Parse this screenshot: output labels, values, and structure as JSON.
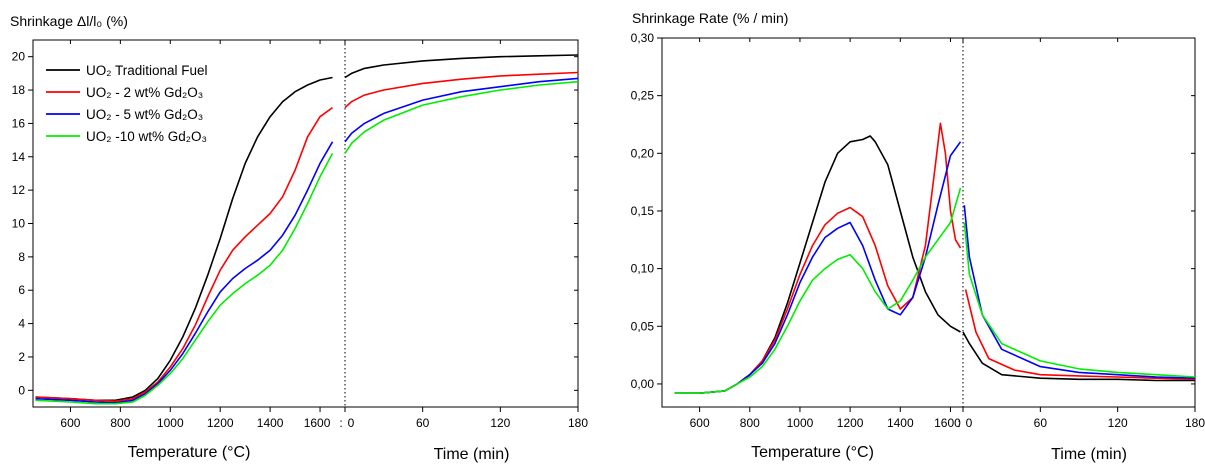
{
  "colors": {
    "traditional": "#000000",
    "gd2": "#ff0000",
    "gd5": "#0000ff",
    "gd10": "#00ee00"
  },
  "chart_data": [
    {
      "type": "line",
      "title": "Shrinkage Δl/l₀ (%)",
      "ylabel": "Shrinkage Δl/l₀ (%)",
      "xlabel_left": "Temperature (°C)",
      "xlabel_right": "Time (min)",
      "ylim": [
        -1,
        21
      ],
      "yticks": [
        0,
        2,
        4,
        6,
        8,
        10,
        12,
        14,
        16,
        18,
        20
      ],
      "temp_range": [
        450,
        1700
      ],
      "temp_ticks": [
        600,
        800,
        1000,
        1200,
        1400,
        1600
      ],
      "time_range": [
        0,
        180
      ],
      "time_ticks": [
        0,
        60,
        120,
        180
      ],
      "legend_position": "top-left",
      "legend": [
        {
          "key": "traditional",
          "label": "UO₂ Traditional Fuel"
        },
        {
          "key": "gd2",
          "label": "UO₂ - 2 wt% Gd₂O₃"
        },
        {
          "key": "gd5",
          "label": "UO₂ - 5 wt% Gd₂O₃"
        },
        {
          "key": "gd10",
          "label": "UO₂ -10 wt% Gd₂O₃"
        }
      ],
      "series": [
        {
          "key": "traditional",
          "temp": [
            [
              460,
              -0.4
            ],
            [
              600,
              -0.5
            ],
            [
              700,
              -0.6
            ],
            [
              780,
              -0.6
            ],
            [
              850,
              -0.4
            ],
            [
              900,
              0.0
            ],
            [
              950,
              0.7
            ],
            [
              1000,
              1.8
            ],
            [
              1050,
              3.2
            ],
            [
              1100,
              4.9
            ],
            [
              1150,
              6.9
            ],
            [
              1200,
              9.1
            ],
            [
              1250,
              11.5
            ],
            [
              1300,
              13.6
            ],
            [
              1350,
              15.2
            ],
            [
              1400,
              16.4
            ],
            [
              1450,
              17.3
            ],
            [
              1500,
              17.9
            ],
            [
              1550,
              18.3
            ],
            [
              1600,
              18.6
            ],
            [
              1650,
              18.75
            ]
          ],
          "time": [
            [
              0,
              18.75
            ],
            [
              5,
              19.0
            ],
            [
              15,
              19.3
            ],
            [
              30,
              19.5
            ],
            [
              60,
              19.75
            ],
            [
              90,
              19.9
            ],
            [
              120,
              20.0
            ],
            [
              150,
              20.05
            ],
            [
              180,
              20.1
            ]
          ]
        },
        {
          "key": "gd2",
          "temp": [
            [
              460,
              -0.4
            ],
            [
              600,
              -0.5
            ],
            [
              700,
              -0.6
            ],
            [
              780,
              -0.65
            ],
            [
              850,
              -0.5
            ],
            [
              900,
              -0.1
            ],
            [
              950,
              0.5
            ],
            [
              1000,
              1.4
            ],
            [
              1050,
              2.5
            ],
            [
              1100,
              3.9
            ],
            [
              1150,
              5.6
            ],
            [
              1200,
              7.2
            ],
            [
              1250,
              8.4
            ],
            [
              1300,
              9.2
            ],
            [
              1350,
              9.9
            ],
            [
              1400,
              10.6
            ],
            [
              1450,
              11.6
            ],
            [
              1500,
              13.2
            ],
            [
              1550,
              15.2
            ],
            [
              1600,
              16.4
            ],
            [
              1650,
              16.95
            ]
          ],
          "time": [
            [
              0,
              16.95
            ],
            [
              5,
              17.3
            ],
            [
              15,
              17.7
            ],
            [
              30,
              18.0
            ],
            [
              60,
              18.4
            ],
            [
              90,
              18.65
            ],
            [
              120,
              18.85
            ],
            [
              150,
              18.95
            ],
            [
              180,
              19.05
            ]
          ]
        },
        {
          "key": "gd5",
          "temp": [
            [
              460,
              -0.5
            ],
            [
              600,
              -0.6
            ],
            [
              700,
              -0.7
            ],
            [
              780,
              -0.75
            ],
            [
              850,
              -0.6
            ],
            [
              900,
              -0.2
            ],
            [
              950,
              0.4
            ],
            [
              1000,
              1.2
            ],
            [
              1050,
              2.2
            ],
            [
              1100,
              3.4
            ],
            [
              1150,
              4.7
            ],
            [
              1200,
              5.9
            ],
            [
              1250,
              6.7
            ],
            [
              1300,
              7.3
            ],
            [
              1350,
              7.8
            ],
            [
              1400,
              8.4
            ],
            [
              1450,
              9.3
            ],
            [
              1500,
              10.5
            ],
            [
              1550,
              12.0
            ],
            [
              1600,
              13.6
            ],
            [
              1650,
              14.9
            ]
          ],
          "time": [
            [
              0,
              14.9
            ],
            [
              5,
              15.4
            ],
            [
              15,
              16.0
            ],
            [
              30,
              16.6
            ],
            [
              60,
              17.4
            ],
            [
              90,
              17.9
            ],
            [
              120,
              18.2
            ],
            [
              150,
              18.5
            ],
            [
              180,
              18.7
            ]
          ]
        },
        {
          "key": "gd10",
          "temp": [
            [
              460,
              -0.6
            ],
            [
              600,
              -0.7
            ],
            [
              700,
              -0.8
            ],
            [
              780,
              -0.8
            ],
            [
              850,
              -0.7
            ],
            [
              900,
              -0.3
            ],
            [
              950,
              0.3
            ],
            [
              1000,
              1.0
            ],
            [
              1050,
              1.9
            ],
            [
              1100,
              3.0
            ],
            [
              1150,
              4.1
            ],
            [
              1200,
              5.1
            ],
            [
              1250,
              5.8
            ],
            [
              1300,
              6.4
            ],
            [
              1350,
              6.9
            ],
            [
              1400,
              7.5
            ],
            [
              1450,
              8.4
            ],
            [
              1500,
              9.7
            ],
            [
              1550,
              11.2
            ],
            [
              1600,
              12.8
            ],
            [
              1650,
              14.2
            ]
          ],
          "time": [
            [
              0,
              14.2
            ],
            [
              5,
              14.8
            ],
            [
              15,
              15.5
            ],
            [
              30,
              16.2
            ],
            [
              60,
              17.1
            ],
            [
              90,
              17.6
            ],
            [
              120,
              18.0
            ],
            [
              150,
              18.3
            ],
            [
              180,
              18.5
            ]
          ]
        }
      ]
    },
    {
      "type": "line",
      "title": "Shrinkage Rate (% / min)",
      "ylabel": "Shrinkage Rate (% / min)",
      "xlabel_left": "Temperature (°C)",
      "xlabel_right": "Time (min)",
      "ylim": [
        -0.02,
        0.3
      ],
      "yticks": [
        "0,00",
        "0,05",
        "0,10",
        "0,15",
        "0,20",
        "0,25",
        "0,30"
      ],
      "ytick_values": [
        0,
        0.05,
        0.1,
        0.15,
        0.2,
        0.25,
        0.3
      ],
      "temp_range": [
        450,
        1650
      ],
      "temp_ticks": [
        600,
        800,
        1000,
        1200,
        1400,
        1600
      ],
      "time_range": [
        0,
        180
      ],
      "time_ticks": [
        0,
        60,
        120,
        180
      ],
      "series": [
        {
          "key": "traditional",
          "temp": [
            [
              500,
              -0.008
            ],
            [
              600,
              -0.008
            ],
            [
              700,
              -0.006
            ],
            [
              750,
              0.0
            ],
            [
              800,
              0.008
            ],
            [
              850,
              0.02
            ],
            [
              900,
              0.04
            ],
            [
              950,
              0.07
            ],
            [
              1000,
              0.105
            ],
            [
              1050,
              0.14
            ],
            [
              1100,
              0.175
            ],
            [
              1150,
              0.2
            ],
            [
              1200,
              0.21
            ],
            [
              1250,
              0.212
            ],
            [
              1280,
              0.215
            ],
            [
              1300,
              0.21
            ],
            [
              1350,
              0.19
            ],
            [
              1400,
              0.15
            ],
            [
              1450,
              0.11
            ],
            [
              1500,
              0.08
            ],
            [
              1550,
              0.06
            ],
            [
              1600,
              0.05
            ],
            [
              1640,
              0.045
            ]
          ],
          "time": [
            [
              0,
              0.045
            ],
            [
              5,
              0.035
            ],
            [
              15,
              0.018
            ],
            [
              30,
              0.008
            ],
            [
              60,
              0.005
            ],
            [
              90,
              0.004
            ],
            [
              120,
              0.004
            ],
            [
              150,
              0.003
            ],
            [
              180,
              0.003
            ]
          ]
        },
        {
          "key": "gd2",
          "temp": [
            [
              500,
              -0.008
            ],
            [
              600,
              -0.008
            ],
            [
              700,
              -0.006
            ],
            [
              750,
              0.0
            ],
            [
              800,
              0.008
            ],
            [
              850,
              0.02
            ],
            [
              900,
              0.038
            ],
            [
              950,
              0.065
            ],
            [
              1000,
              0.095
            ],
            [
              1050,
              0.12
            ],
            [
              1100,
              0.138
            ],
            [
              1150,
              0.148
            ],
            [
              1200,
              0.153
            ],
            [
              1250,
              0.145
            ],
            [
              1300,
              0.12
            ],
            [
              1350,
              0.085
            ],
            [
              1400,
              0.065
            ],
            [
              1450,
              0.075
            ],
            [
              1500,
              0.12
            ],
            [
              1540,
              0.19
            ],
            [
              1560,
              0.226
            ],
            [
              1580,
              0.2
            ],
            [
              1600,
              0.15
            ],
            [
              1620,
              0.125
            ],
            [
              1640,
              0.118
            ]
          ],
          "time": [
            [
              2,
              0.082
            ],
            [
              10,
              0.045
            ],
            [
              20,
              0.022
            ],
            [
              40,
              0.012
            ],
            [
              60,
              0.008
            ],
            [
              90,
              0.007
            ],
            [
              120,
              0.006
            ],
            [
              150,
              0.005
            ],
            [
              180,
              0.004
            ]
          ]
        },
        {
          "key": "gd5",
          "temp": [
            [
              500,
              -0.008
            ],
            [
              600,
              -0.008
            ],
            [
              700,
              -0.006
            ],
            [
              750,
              0.0
            ],
            [
              800,
              0.008
            ],
            [
              850,
              0.018
            ],
            [
              900,
              0.035
            ],
            [
              950,
              0.06
            ],
            [
              1000,
              0.088
            ],
            [
              1050,
              0.11
            ],
            [
              1100,
              0.127
            ],
            [
              1150,
              0.135
            ],
            [
              1200,
              0.14
            ],
            [
              1250,
              0.12
            ],
            [
              1300,
              0.09
            ],
            [
              1350,
              0.065
            ],
            [
              1400,
              0.06
            ],
            [
              1450,
              0.075
            ],
            [
              1500,
              0.11
            ],
            [
              1550,
              0.155
            ],
            [
              1600,
              0.198
            ],
            [
              1640,
              0.21
            ]
          ],
          "time": [
            [
              1,
              0.155
            ],
            [
              5,
              0.11
            ],
            [
              15,
              0.06
            ],
            [
              30,
              0.03
            ],
            [
              60,
              0.015
            ],
            [
              90,
              0.01
            ],
            [
              120,
              0.008
            ],
            [
              150,
              0.006
            ],
            [
              180,
              0.005
            ]
          ]
        },
        {
          "key": "gd10",
          "temp": [
            [
              500,
              -0.008
            ],
            [
              600,
              -0.008
            ],
            [
              700,
              -0.006
            ],
            [
              750,
              0.0
            ],
            [
              800,
              0.006
            ],
            [
              850,
              0.015
            ],
            [
              900,
              0.03
            ],
            [
              950,
              0.05
            ],
            [
              1000,
              0.072
            ],
            [
              1050,
              0.09
            ],
            [
              1100,
              0.1
            ],
            [
              1150,
              0.108
            ],
            [
              1200,
              0.112
            ],
            [
              1250,
              0.1
            ],
            [
              1300,
              0.08
            ],
            [
              1350,
              0.065
            ],
            [
              1400,
              0.072
            ],
            [
              1450,
              0.09
            ],
            [
              1500,
              0.11
            ],
            [
              1550,
              0.125
            ],
            [
              1600,
              0.14
            ],
            [
              1640,
              0.17
            ]
          ],
          "time": [
            [
              1,
              0.14
            ],
            [
              5,
              0.095
            ],
            [
              15,
              0.06
            ],
            [
              30,
              0.035
            ],
            [
              60,
              0.02
            ],
            [
              90,
              0.013
            ],
            [
              120,
              0.01
            ],
            [
              150,
              0.008
            ],
            [
              180,
              0.006
            ]
          ]
        }
      ]
    }
  ]
}
